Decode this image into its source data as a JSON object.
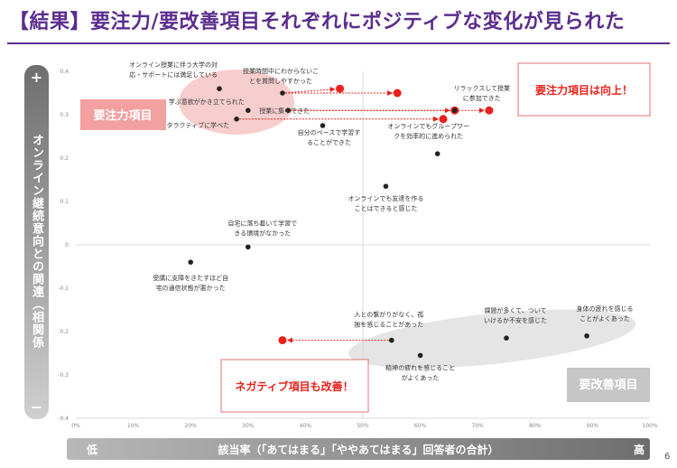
{
  "header": {
    "title": "【結果】要注力/要改善項目それぞれにポジティブな変化が見られた",
    "page_number": "6"
  },
  "axes": {
    "y_title": "オンライン継続意向との関連（相関係数）",
    "y_plus": "+",
    "y_minus": "−",
    "x_title": "該当率（「あてはまる」「ややあてはまる」回答者の合計）",
    "x_low": "低",
    "x_high": "高"
  },
  "annotations": {
    "focus_area_label": "要注力項目",
    "improve_area_label": "要改善項目",
    "focus_callout": "要注力項目は向上！",
    "negative_callout": "ネガティブ項目も改善！"
  },
  "colors": {
    "title": "#5b2d8e",
    "highlight_red": "#e8221b",
    "focus_pink": "#f2a0a0",
    "focus_ellipse": "#f6c6c6",
    "improve_gray": "#cfcfcf",
    "point_black": "#222222"
  },
  "chart_data": {
    "type": "scatter",
    "xlabel": "該当率（「あてはまる」「ややあてはまる」回答者の合計）",
    "ylabel": "オンライン継続意向との関連（相関係数）",
    "xlim": [
      0,
      100
    ],
    "ylim": [
      -0.4,
      0.4
    ],
    "x_ticks": [
      "0%",
      "10%",
      "20%",
      "30%",
      "40%",
      "50%",
      "60%",
      "70%",
      "80%",
      "90%",
      "100%"
    ],
    "y_ticks": [
      "0.4",
      "0.3",
      "0.2",
      "0.1",
      "0",
      "-0.1",
      "-0.2",
      "-0.3",
      "-0.4"
    ],
    "grid": false,
    "reference_lines": {
      "x": 50,
      "y": 0
    },
    "points": [
      {
        "label": [
          "オンライン授業に伴う大学の対",
          "応・サポートには満足している"
        ],
        "x": 25,
        "y": 0.36
      },
      {
        "label": [
          "授業時間中にわからないこ",
          "とを質問しやすかった"
        ],
        "x": 36,
        "y": 0.35
      },
      {
        "label": [
          "学ぶ意欲がかき立てられた"
        ],
        "x": 30,
        "y": 0.31
      },
      {
        "label": [
          "授業に集中できた"
        ],
        "x": 37,
        "y": 0.31
      },
      {
        "label": [
          "インタラクティブに学べた"
        ],
        "x": 28,
        "y": 0.29
      },
      {
        "label": [
          "自分のペースで学習す",
          "ることができた"
        ],
        "x": 43,
        "y": 0.275
      },
      {
        "label": [
          "リラックスして授業",
          "に参加できた"
        ],
        "x": 66,
        "y": 0.31
      },
      {
        "label": [
          "オンラインでもグループワー",
          "クを効率的に進められた"
        ],
        "x": 63,
        "y": 0.21
      },
      {
        "label": [
          "オンラインでも友達を作る",
          "ことはできると感じた"
        ],
        "x": 54,
        "y": 0.135
      },
      {
        "label": [
          "自宅に落ち着いて学習で",
          "きる環境がなかった"
        ],
        "x": 30,
        "y": -0.005
      },
      {
        "label": [
          "受講に支障をきたすほど自",
          "宅の通信状態が悪かった"
        ],
        "x": 20,
        "y": -0.04
      },
      {
        "label": [
          "人との繋がりがなく、孤",
          "独を感じることがあった"
        ],
        "x": 55,
        "y": -0.22
      },
      {
        "label": [
          "精神の疲れを感じること",
          "がよくあった"
        ],
        "x": 60,
        "y": -0.255
      },
      {
        "label": [
          "課題が多くて、ついて",
          "いけるか不安を感じた"
        ],
        "x": 75,
        "y": -0.215
      },
      {
        "label": [
          "身体の疲れを感じる",
          "ことがよくあった"
        ],
        "x": 89,
        "y": -0.21
      }
    ],
    "highlighted_changes": [
      {
        "from": {
          "x": 36,
          "y": 0.35
        },
        "to": {
          "x": 46,
          "y": 0.36
        }
      },
      {
        "from": {
          "x": 36,
          "y": 0.35
        },
        "to": {
          "x": 56,
          "y": 0.35
        }
      },
      {
        "from": {
          "x": 37,
          "y": 0.31
        },
        "to": {
          "x": 66,
          "y": 0.31
        }
      },
      {
        "from": {
          "x": 37,
          "y": 0.31
        },
        "to": {
          "x": 72,
          "y": 0.31
        }
      },
      {
        "from": {
          "x": 28,
          "y": 0.29
        },
        "to": {
          "x": 64,
          "y": 0.29
        }
      },
      {
        "from": {
          "x": 55,
          "y": -0.22
        },
        "to": {
          "x": 36,
          "y": -0.22
        }
      }
    ]
  }
}
